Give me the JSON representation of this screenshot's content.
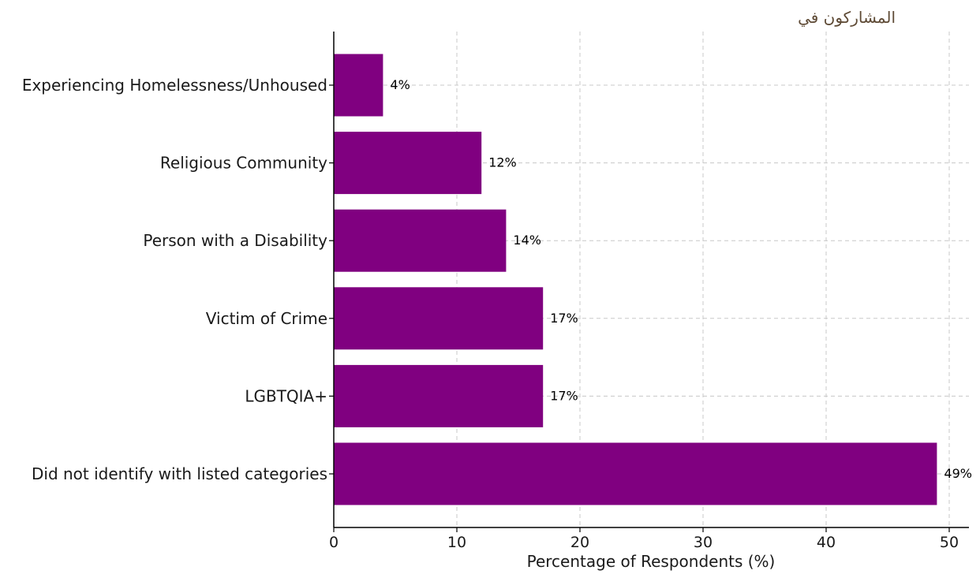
{
  "header": {
    "arabic_text": "المشاركون في"
  },
  "chart_data": {
    "type": "bar",
    "orientation": "horizontal",
    "categories": [
      "Experiencing Homelessness/Unhoused",
      "Religious Community",
      "Person with a Disability",
      "Victim of Crime",
      "LGBTQIA+",
      "Did not identify with listed categories"
    ],
    "values": [
      4,
      12,
      14,
      17,
      17,
      49
    ],
    "data_labels": [
      "4%",
      "12%",
      "14%",
      "17%",
      "17%",
      "49%"
    ],
    "title": "",
    "xlabel": "Percentage of Respondents (%)",
    "ylabel": "",
    "xlim": [
      0,
      51.5
    ],
    "x_ticks": [
      0,
      10,
      20,
      30,
      40,
      50
    ],
    "grid": true,
    "bar_color": "#800080",
    "grid_color": "#c8c8c8"
  }
}
